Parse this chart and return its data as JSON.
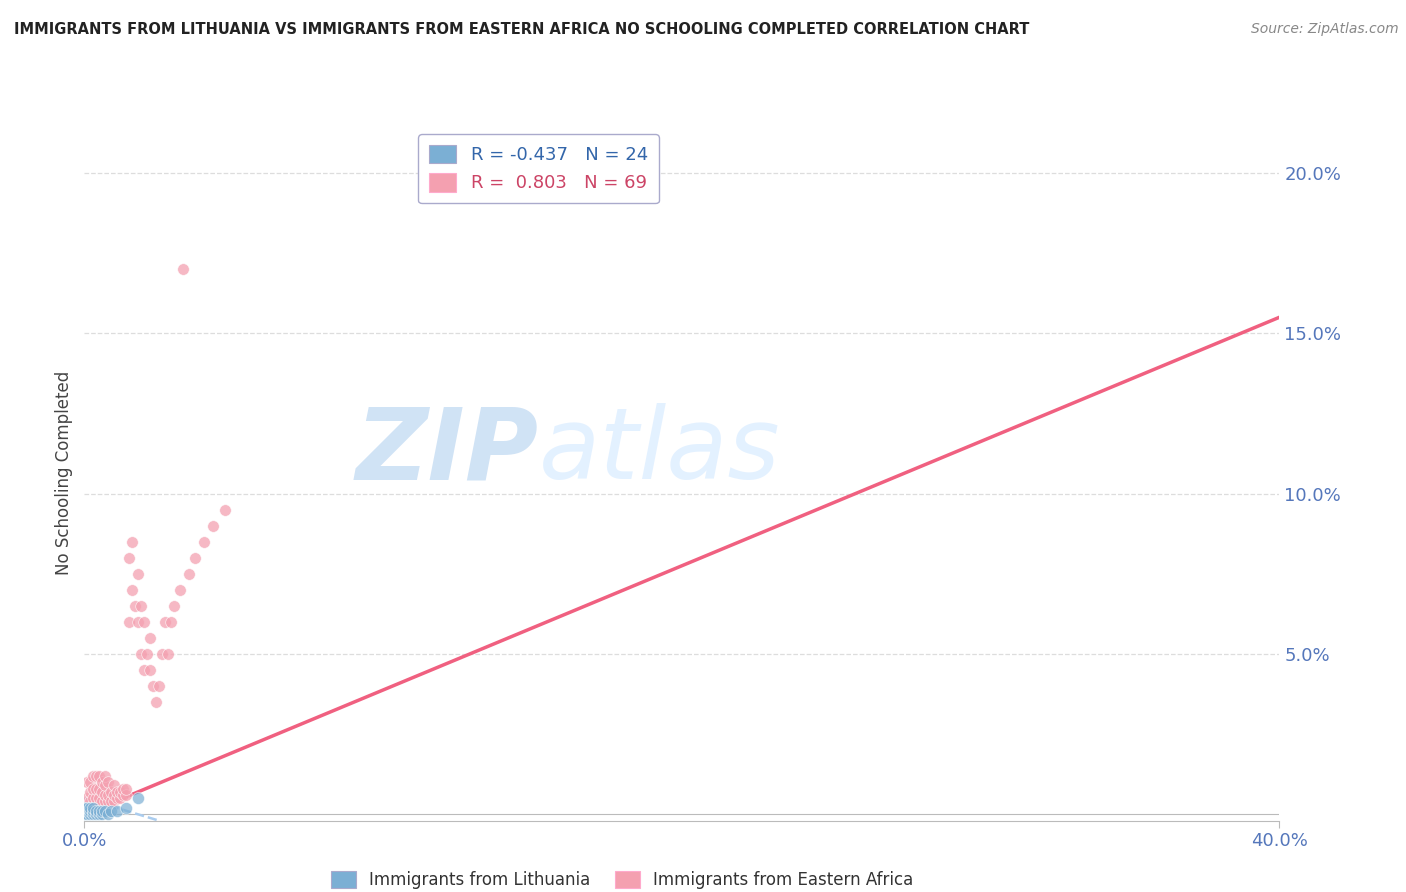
{
  "title": "IMMIGRANTS FROM LITHUANIA VS IMMIGRANTS FROM EASTERN AFRICA NO SCHOOLING COMPLETED CORRELATION CHART",
  "source": "Source: ZipAtlas.com",
  "ylabel": "No Schooling Completed",
  "ytick_vals": [
    0.05,
    0.1,
    0.15,
    0.2
  ],
  "ytick_labels": [
    "5.0%",
    "10.0%",
    "15.0%",
    "20.0%"
  ],
  "xlim": [
    0.0,
    0.4
  ],
  "ylim": [
    -0.002,
    0.215
  ],
  "watermark_zip": "ZIP",
  "watermark_atlas": "atlas",
  "legend_r1": "R = -0.437   N = 24",
  "legend_r2": "R =  0.803   N = 69",
  "color_blue": "#7BAFD4",
  "color_pink": "#F4A0B0",
  "color_line_blue": "#AACCEE",
  "color_line_pink": "#F06080",
  "title_color": "#222222",
  "source_color": "#888888",
  "tick_color": "#5577BB",
  "grid_color": "#DDDDDD",
  "lithuania_points": [
    [
      0.0,
      0.0
    ],
    [
      0.0,
      0.001
    ],
    [
      0.0,
      0.002
    ],
    [
      0.001,
      0.0
    ],
    [
      0.001,
      0.001
    ],
    [
      0.001,
      0.002
    ],
    [
      0.002,
      0.0
    ],
    [
      0.002,
      0.001
    ],
    [
      0.002,
      0.002
    ],
    [
      0.003,
      0.0
    ],
    [
      0.003,
      0.001
    ],
    [
      0.003,
      0.002
    ],
    [
      0.004,
      0.0
    ],
    [
      0.004,
      0.001
    ],
    [
      0.005,
      0.0
    ],
    [
      0.005,
      0.001
    ],
    [
      0.006,
      0.0
    ],
    [
      0.006,
      0.001
    ],
    [
      0.007,
      0.001
    ],
    [
      0.008,
      0.0
    ],
    [
      0.009,
      0.001
    ],
    [
      0.011,
      0.001
    ],
    [
      0.014,
      0.002
    ],
    [
      0.018,
      0.005
    ]
  ],
  "eastern_africa_points": [
    [
      0.001,
      0.005
    ],
    [
      0.001,
      0.01
    ],
    [
      0.002,
      0.004
    ],
    [
      0.002,
      0.007
    ],
    [
      0.002,
      0.01
    ],
    [
      0.003,
      0.003
    ],
    [
      0.003,
      0.005
    ],
    [
      0.003,
      0.008
    ],
    [
      0.003,
      0.012
    ],
    [
      0.004,
      0.003
    ],
    [
      0.004,
      0.005
    ],
    [
      0.004,
      0.008
    ],
    [
      0.004,
      0.012
    ],
    [
      0.005,
      0.003
    ],
    [
      0.005,
      0.005
    ],
    [
      0.005,
      0.008
    ],
    [
      0.005,
      0.012
    ],
    [
      0.006,
      0.004
    ],
    [
      0.006,
      0.007
    ],
    [
      0.006,
      0.01
    ],
    [
      0.007,
      0.004
    ],
    [
      0.007,
      0.006
    ],
    [
      0.007,
      0.009
    ],
    [
      0.007,
      0.012
    ],
    [
      0.008,
      0.004
    ],
    [
      0.008,
      0.006
    ],
    [
      0.008,
      0.01
    ],
    [
      0.009,
      0.004
    ],
    [
      0.009,
      0.007
    ],
    [
      0.01,
      0.004
    ],
    [
      0.01,
      0.006
    ],
    [
      0.01,
      0.009
    ],
    [
      0.011,
      0.005
    ],
    [
      0.011,
      0.007
    ],
    [
      0.012,
      0.005
    ],
    [
      0.012,
      0.007
    ],
    [
      0.013,
      0.006
    ],
    [
      0.013,
      0.008
    ],
    [
      0.014,
      0.006
    ],
    [
      0.014,
      0.008
    ],
    [
      0.015,
      0.06
    ],
    [
      0.015,
      0.08
    ],
    [
      0.016,
      0.07
    ],
    [
      0.016,
      0.085
    ],
    [
      0.017,
      0.065
    ],
    [
      0.018,
      0.06
    ],
    [
      0.018,
      0.075
    ],
    [
      0.019,
      0.05
    ],
    [
      0.019,
      0.065
    ],
    [
      0.02,
      0.045
    ],
    [
      0.02,
      0.06
    ],
    [
      0.021,
      0.05
    ],
    [
      0.022,
      0.045
    ],
    [
      0.022,
      0.055
    ],
    [
      0.023,
      0.04
    ],
    [
      0.024,
      0.035
    ],
    [
      0.025,
      0.04
    ],
    [
      0.026,
      0.05
    ],
    [
      0.027,
      0.06
    ],
    [
      0.028,
      0.05
    ],
    [
      0.029,
      0.06
    ],
    [
      0.03,
      0.065
    ],
    [
      0.032,
      0.07
    ],
    [
      0.033,
      0.17
    ],
    [
      0.035,
      0.075
    ],
    [
      0.037,
      0.08
    ],
    [
      0.04,
      0.085
    ],
    [
      0.043,
      0.09
    ],
    [
      0.047,
      0.095
    ]
  ],
  "ea_line_x": [
    0.0,
    0.4
  ],
  "ea_line_y": [
    0.0,
    0.155
  ],
  "lith_line_x": [
    0.0,
    0.025
  ],
  "lith_line_y": [
    0.005,
    -0.002
  ]
}
